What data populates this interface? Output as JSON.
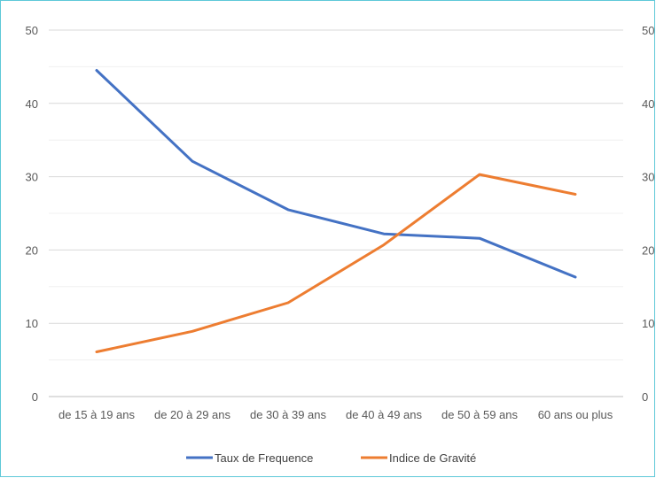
{
  "chart_data": {
    "type": "line",
    "categories": [
      "de 15 à 19 ans",
      "de 20 à 29 ans",
      "de 30 à 39 ans",
      "de 40 à 49 ans",
      "de 50 à 59 ans",
      "60 ans ou plus"
    ],
    "series": [
      {
        "name": "Taux de Frequence",
        "color": "#4472c4",
        "values": [
          44.5,
          32.1,
          25.5,
          22.2,
          21.6,
          16.3
        ]
      },
      {
        "name": "Indice de Gravité",
        "color": "#ed7d31",
        "values": [
          6.1,
          8.9,
          12.8,
          20.7,
          30.3,
          27.6
        ]
      }
    ],
    "ylim": [
      0,
      50
    ],
    "y_ticks": [
      "0",
      "10",
      "20",
      "30",
      "40",
      "50"
    ],
    "y2_ticks": [
      "0",
      "10",
      "20",
      "30",
      "40",
      "50"
    ],
    "minor_gridlines": true,
    "legend_position": "bottom"
  }
}
